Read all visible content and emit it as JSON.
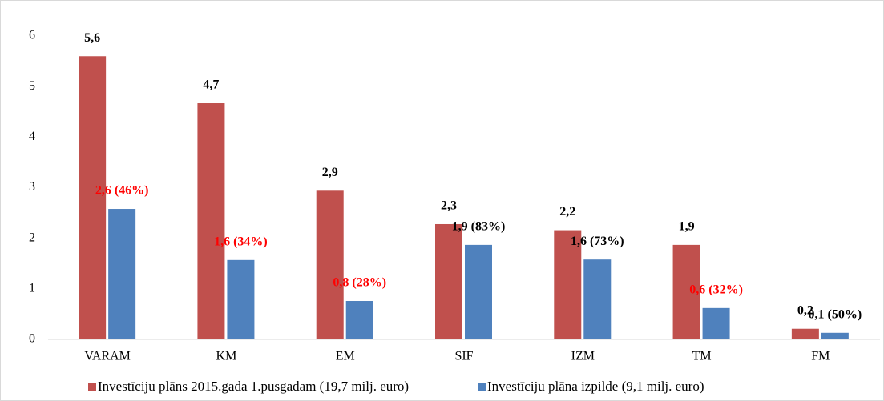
{
  "chart_data": {
    "type": "bar",
    "categories": [
      "VARAM",
      "KM",
      "EM",
      "SIF",
      "IZM",
      "TM",
      "FM"
    ],
    "series": [
      {
        "name": "Investīciju plāns 2015.gada 1.pusgadam (19,7 milj. euro)",
        "color": "#c0504d",
        "values": [
          5.6,
          4.67,
          2.94,
          2.28,
          2.16,
          1.87,
          0.21
        ],
        "value_labels": [
          "5,6",
          "4,7",
          "2,9",
          "2,3",
          "2,2",
          "1,9",
          "0,2"
        ],
        "value_label_colors": [
          "#000000",
          "#000000",
          "#000000",
          "#000000",
          "#000000",
          "#000000",
          "#000000"
        ]
      },
      {
        "name": "Investīciju plāna izpilde (9,1 milj. euro)",
        "color": "#4f81bd",
        "values": [
          2.58,
          1.57,
          0.76,
          1.87,
          1.58,
          0.62,
          0.13
        ],
        "value_labels": [
          "2,6 (46%)",
          "1,6 (34%)",
          "0,8 (28%)",
          "1,9 (83%)",
          "1,6 (73%)",
          "0,6 (32%)",
          "0,1 (50%)"
        ],
        "value_label_colors": [
          "#ff0000",
          "#ff0000",
          "#ff0000",
          "#000000",
          "#000000",
          "#ff0000",
          "#000000"
        ]
      }
    ],
    "ylim": [
      0,
      6
    ],
    "yticks": [
      0,
      1,
      2,
      3,
      4,
      5,
      6
    ],
    "grid": false,
    "legend": "bottom"
  }
}
